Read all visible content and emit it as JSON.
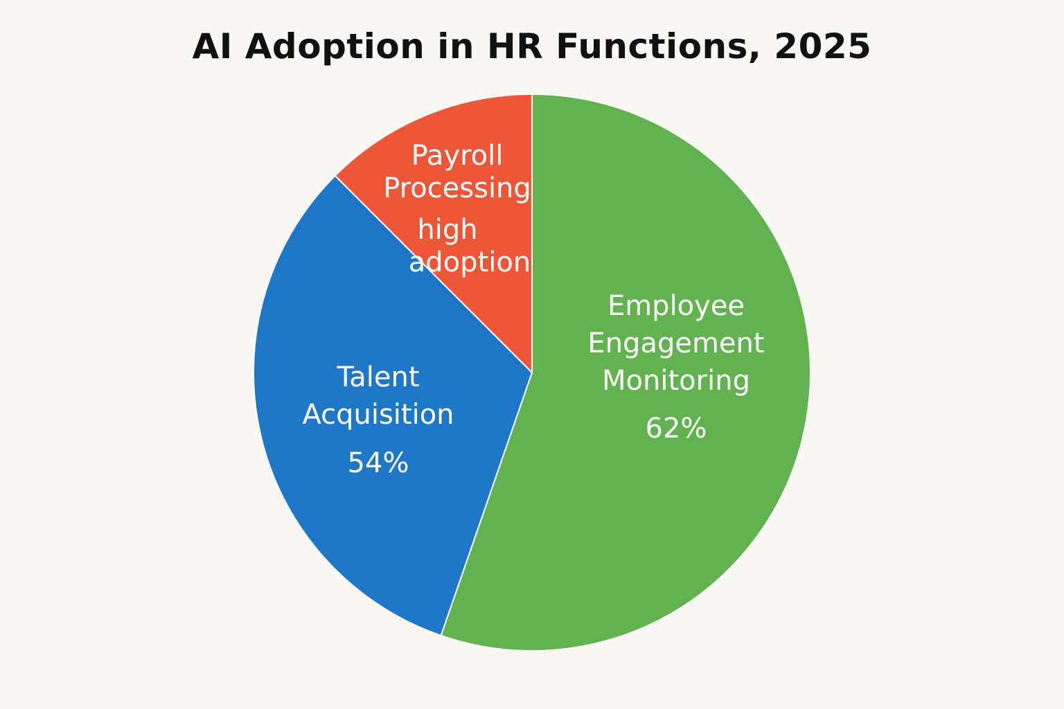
{
  "chart_data": {
    "type": "pie",
    "title": "AI Adoption in HR Functions, 2025",
    "slices": [
      {
        "name": "Employee Engagement Monitoring",
        "label_lines": [
          "Employee",
          "Engagement",
          "Monitoring"
        ],
        "value_label": "62%",
        "share_of_circle": 0.553,
        "color": "#62b24f"
      },
      {
        "name": "Talent Acquisition",
        "label_lines": [
          "Talent",
          "Acquisition"
        ],
        "value_label": "54%",
        "share_of_circle": 0.322,
        "color": "#1f77c7"
      },
      {
        "name": "Payroll Processing",
        "label_lines": [
          "Payroll",
          "Processing"
        ],
        "value_label_lines": [
          "high",
          "adoption"
        ],
        "share_of_circle": 0.125,
        "color": "#ee5638"
      }
    ],
    "start_angle_deg": 0,
    "direction": "clockwise",
    "legend": "none"
  }
}
